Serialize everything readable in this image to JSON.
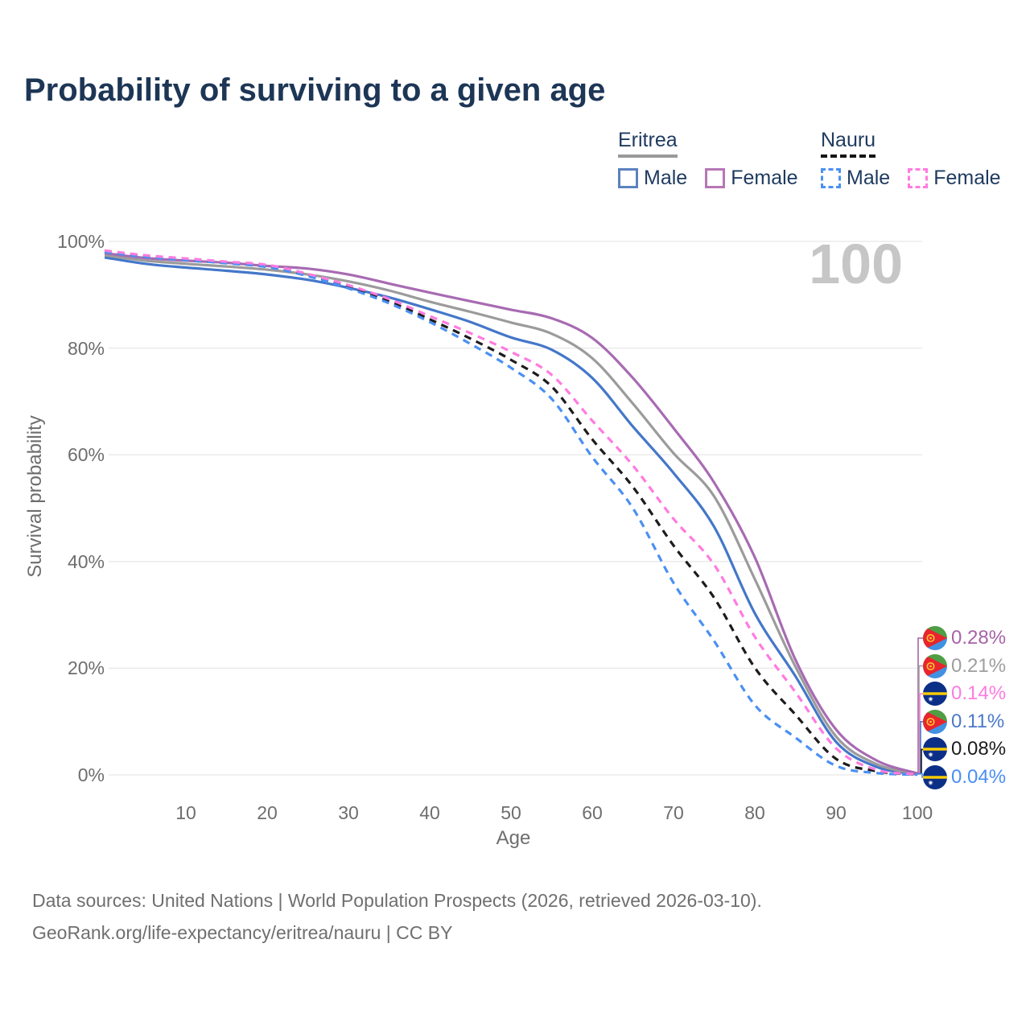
{
  "title": "Probability of surviving to a given age",
  "watermark_age": "100",
  "legend": {
    "groups": [
      {
        "country": "Eritrea",
        "style": "solid",
        "underline_color": "#9a9a9a",
        "items": [
          {
            "label": "Male",
            "color": "#5b82c0"
          },
          {
            "label": "Female",
            "color": "#b677b6"
          }
        ]
      },
      {
        "country": "Nauru",
        "style": "dashed",
        "underline_color": "#151515",
        "items": [
          {
            "label": "Male",
            "color": "#4a90f2"
          },
          {
            "label": "Female",
            "color": "#ff7be0"
          }
        ]
      }
    ]
  },
  "y_axis": {
    "label": "Survival probability",
    "ticks": [
      {
        "value": 0,
        "label": "0%"
      },
      {
        "value": 20,
        "label": "20%"
      },
      {
        "value": 40,
        "label": "40%"
      },
      {
        "value": 60,
        "label": "60%"
      },
      {
        "value": 80,
        "label": "80%"
      },
      {
        "value": 100,
        "label": "100%"
      }
    ]
  },
  "x_axis": {
    "label": "Age",
    "ticks": [
      10,
      20,
      30,
      40,
      50,
      60,
      70,
      80,
      90,
      100
    ]
  },
  "end_labels": [
    {
      "flag": "eritrea",
      "series": "Eritrea Female",
      "value": "0.28%",
      "color": "#a763a7"
    },
    {
      "flag": "eritrea",
      "series": "Eritrea Both sexes",
      "value": "0.21%",
      "color": "#9e9e9e"
    },
    {
      "flag": "nauru",
      "series": "Nauru Female",
      "value": "0.14%",
      "color": "#ff7be0"
    },
    {
      "flag": "eritrea",
      "series": "Eritrea Male",
      "value": "0.11%",
      "color": "#4b79c9"
    },
    {
      "flag": "nauru",
      "series": "Nauru Both sexes",
      "value": "0.08%",
      "color": "#1c1c1c"
    },
    {
      "flag": "nauru",
      "series": "Nauru Male",
      "value": "0.04%",
      "color": "#4a8ef5"
    }
  ],
  "footer": {
    "line1": "Data sources: United Nations | World Population Prospects (2026, retrieved 2026-03-10).",
    "line2": "GeoRank.org/life-expectancy/eritrea/nauru | CC BY"
  },
  "chart_data": {
    "type": "line",
    "title": "Probability of surviving to a given age",
    "xlabel": "Age",
    "ylabel": "Survival probability",
    "x_ages": [
      0,
      5,
      10,
      15,
      20,
      25,
      30,
      35,
      40,
      45,
      50,
      55,
      60,
      65,
      70,
      75,
      80,
      85,
      90,
      95,
      100
    ],
    "xlim": [
      0,
      100
    ],
    "ylim_pct": [
      0,
      100
    ],
    "grid": "horizontal",
    "legend_position": "top-right",
    "annotation_age_marker": "100",
    "series": [
      {
        "id": "eritrea-male",
        "name": "Eritrea Male",
        "country": "Eritrea",
        "sex": "Male",
        "style": "solid",
        "color": "#4477c9",
        "values_pct": [
          97.0,
          95.8,
          95.1,
          94.5,
          93.8,
          92.8,
          91.3,
          89.5,
          87.3,
          84.9,
          82.0,
          79.7,
          74.4,
          65.3,
          56.6,
          46.5,
          30.3,
          18.5,
          6.2,
          1.5,
          0.11
        ]
      },
      {
        "id": "eritrea-all",
        "name": "Eritrea Both sexes",
        "country": "Eritrea",
        "sex": "All",
        "style": "solid",
        "color": "#9b9b9b",
        "values_pct": [
          97.4,
          96.4,
          95.8,
          95.3,
          94.7,
          93.8,
          92.5,
          90.8,
          88.7,
          86.8,
          84.8,
          82.7,
          78.1,
          69.6,
          60.3,
          52.2,
          36.7,
          20.3,
          7.2,
          2.0,
          0.21
        ]
      },
      {
        "id": "eritrea-female",
        "name": "Eritrea Female",
        "country": "Eritrea",
        "sex": "Female",
        "style": "solid",
        "color": "#a76bb2",
        "values_pct": [
          97.8,
          96.9,
          96.4,
          96.0,
          95.4,
          94.9,
          93.8,
          92.1,
          90.4,
          88.8,
          87.2,
          85.6,
          81.9,
          74.4,
          65.0,
          54.8,
          40.8,
          21.6,
          8.5,
          2.7,
          0.28
        ]
      },
      {
        "id": "nauru-all",
        "name": "Nauru Both sexes",
        "country": "Nauru",
        "sex": "All",
        "style": "dashed",
        "color": "#1c1c1c",
        "values_pct": [
          98.2,
          97.2,
          96.6,
          96.0,
          95.4,
          93.7,
          91.5,
          88.8,
          85.4,
          81.8,
          77.8,
          72.8,
          62.9,
          54.0,
          43.0,
          33.2,
          20.1,
          11.3,
          3.0,
          0.7,
          0.08
        ]
      },
      {
        "id": "nauru-male",
        "name": "Nauru Male",
        "country": "Nauru",
        "sex": "Male",
        "style": "dashed",
        "color": "#4a90f2",
        "values_pct": [
          98.0,
          97.1,
          96.5,
          95.9,
          95.2,
          93.5,
          91.2,
          88.4,
          84.9,
          80.8,
          76.3,
          70.5,
          59.6,
          50.0,
          36.0,
          25.1,
          13.1,
          7.0,
          1.7,
          0.35,
          0.04
        ]
      },
      {
        "id": "nauru-female",
        "name": "Nauru Female",
        "country": "Nauru",
        "sex": "Female",
        "style": "dashed",
        "color": "#ff7be0",
        "values_pct": [
          98.3,
          97.4,
          96.8,
          96.2,
          95.6,
          93.9,
          91.8,
          89.2,
          86.0,
          82.8,
          79.3,
          75.0,
          66.4,
          58.0,
          48.0,
          39.4,
          25.9,
          15.5,
          5.0,
          0.95,
          0.14
        ]
      }
    ]
  }
}
